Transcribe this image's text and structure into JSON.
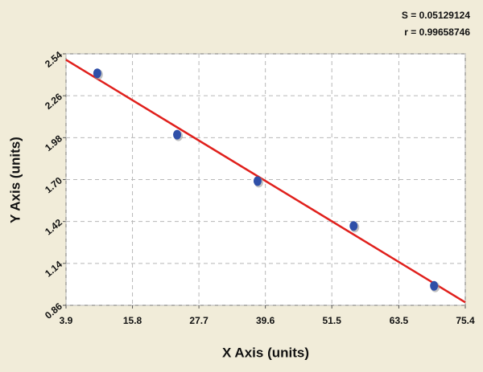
{
  "chart_data": {
    "type": "scatter",
    "x_label": "X Axis (units)",
    "y_label": "Y Axis (units)",
    "annotations": [
      "S = 0.05129124",
      "r = 0.99658746"
    ],
    "xlim": [
      3.9,
      75.4
    ],
    "ylim": [
      0.86,
      2.54
    ],
    "xticks": [
      3.9,
      15.8,
      27.7,
      39.6,
      51.5,
      63.5,
      75.4
    ],
    "yticks": [
      0.86,
      1.14,
      1.42,
      {
        "value": 1.7,
        "label": "1.70"
      },
      1.98,
      2.26,
      2.54
    ],
    "grid": true,
    "points": {
      "color": "#2f4fa8",
      "x": [
        9.5,
        23.8,
        38.2,
        55.4,
        69.8
      ],
      "values": [
        2.41,
        2.0,
        1.69,
        1.39,
        0.99
      ]
    },
    "fit": {
      "color": "#e0201c",
      "x": [
        3.9,
        75.4
      ],
      "values": [
        2.5,
        0.88
      ]
    }
  }
}
